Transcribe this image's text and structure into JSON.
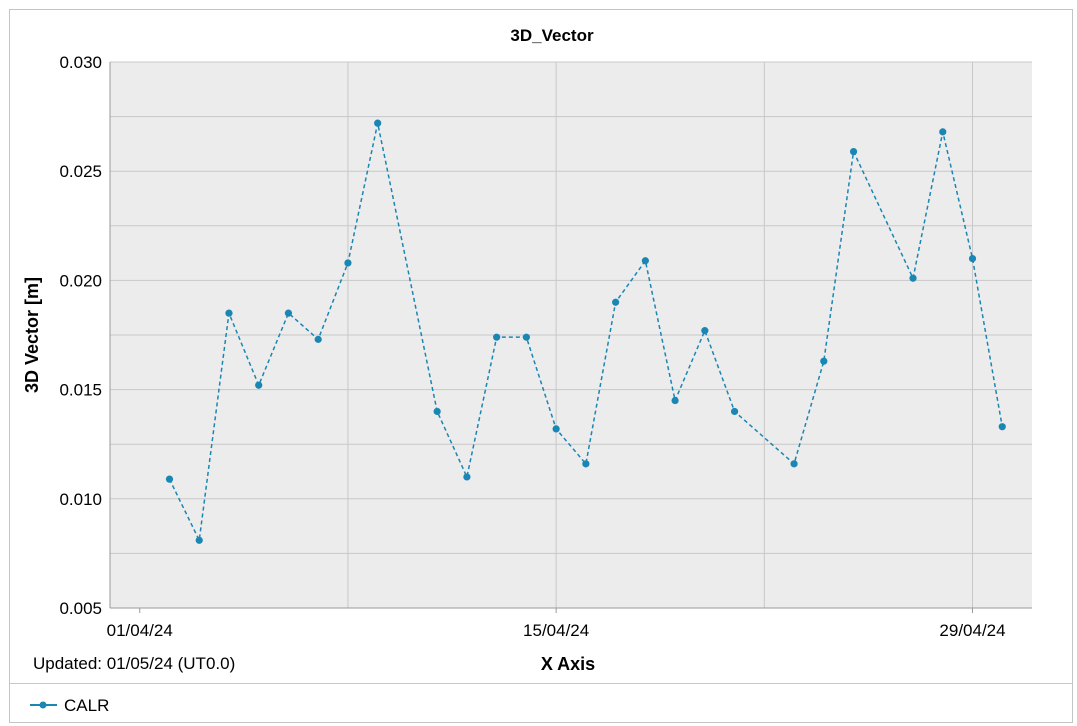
{
  "chart_data": {
    "type": "line",
    "title": "3D_Vector",
    "xlabel": "X Axis",
    "ylabel": "3D Vector [m]",
    "ylim": [
      0.005,
      0.03
    ],
    "yticks": [
      "0.005",
      "0.010",
      "0.015",
      "0.020",
      "0.025",
      "0.030"
    ],
    "xticks": [
      "01/04/24",
      "15/04/24",
      "29/04/24"
    ],
    "xlim": [
      "2024-03-31",
      "2024-05-01"
    ],
    "grid": true,
    "legend_position": "bottom-left",
    "series": [
      {
        "name": "CALR",
        "color": "#1a86b4",
        "line_style": "dashed",
        "marker": "circle",
        "points": [
          {
            "x": "2024-04-02",
            "y": 0.0109
          },
          {
            "x": "2024-04-03",
            "y": 0.0081
          },
          {
            "x": "2024-04-04",
            "y": 0.0185
          },
          {
            "x": "2024-04-05",
            "y": 0.0152
          },
          {
            "x": "2024-04-06",
            "y": 0.0185
          },
          {
            "x": "2024-04-07",
            "y": 0.0173
          },
          {
            "x": "2024-04-08",
            "y": 0.0208
          },
          {
            "x": "2024-04-09",
            "y": 0.0272
          },
          {
            "x": "2024-04-11",
            "y": 0.014
          },
          {
            "x": "2024-04-12",
            "y": 0.011
          },
          {
            "x": "2024-04-13",
            "y": 0.0174
          },
          {
            "x": "2024-04-14",
            "y": 0.0174
          },
          {
            "x": "2024-04-15",
            "y": 0.0132
          },
          {
            "x": "2024-04-16",
            "y": 0.0116
          },
          {
            "x": "2024-04-17",
            "y": 0.019
          },
          {
            "x": "2024-04-18",
            "y": 0.0209
          },
          {
            "x": "2024-04-19",
            "y": 0.0145
          },
          {
            "x": "2024-04-20",
            "y": 0.0177
          },
          {
            "x": "2024-04-21",
            "y": 0.014
          },
          {
            "x": "2024-04-23",
            "y": 0.0116
          },
          {
            "x": "2024-04-24",
            "y": 0.0163
          },
          {
            "x": "2024-04-25",
            "y": 0.0259
          },
          {
            "x": "2024-04-27",
            "y": 0.0201
          },
          {
            "x": "2024-04-28",
            "y": 0.0268
          },
          {
            "x": "2024-04-29",
            "y": 0.021
          },
          {
            "x": "2024-04-30",
            "y": 0.0133
          }
        ]
      }
    ]
  },
  "footer": {
    "updated": "Updated: 01/05/24 (UT0.0)"
  },
  "colors": {
    "plot_background": "#ececec",
    "grid": "#c8c8c8",
    "series": "#1a86b4"
  }
}
